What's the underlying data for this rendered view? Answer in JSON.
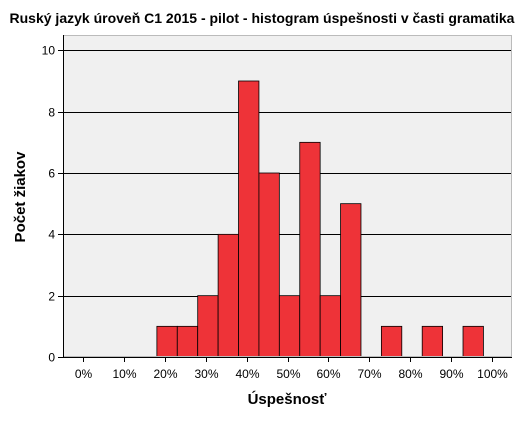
{
  "chart_data": {
    "type": "bar",
    "title": "Ruský jazyk úroveň C1 2015 - pilot - histogram úspešnosti v časti gramatika",
    "xlabel": "Úspešnosť",
    "ylabel": "Počet žiakov",
    "xlim": [
      -0.05,
      1.05
    ],
    "ylim": [
      0,
      10.5
    ],
    "x_ticks": [
      0,
      0.1,
      0.2,
      0.3,
      0.4,
      0.5,
      0.6,
      0.7,
      0.8,
      0.9,
      1.0
    ],
    "x_tick_labels": [
      "0%",
      "10%",
      "20%",
      "30%",
      "40%",
      "50%",
      "60%",
      "70%",
      "80%",
      "90%",
      "100%"
    ],
    "y_ticks": [
      0,
      2,
      4,
      6,
      8,
      10
    ],
    "y_tick_labels": [
      "0",
      "2",
      "4",
      "6",
      "8",
      "10"
    ],
    "bin_width": 0.05,
    "bins": [
      {
        "start": 0.18,
        "count": 1
      },
      {
        "start": 0.23,
        "count": 1
      },
      {
        "start": 0.28,
        "count": 2
      },
      {
        "start": 0.33,
        "count": 4
      },
      {
        "start": 0.38,
        "count": 9
      },
      {
        "start": 0.43,
        "count": 6
      },
      {
        "start": 0.48,
        "count": 2
      },
      {
        "start": 0.53,
        "count": 7
      },
      {
        "start": 0.58,
        "count": 2
      },
      {
        "start": 0.63,
        "count": 5
      },
      {
        "start": 0.73,
        "count": 1
      },
      {
        "start": 0.83,
        "count": 1
      },
      {
        "start": 0.93,
        "count": 1
      }
    ],
    "grid": "horizontal",
    "legend": "none",
    "colors": {
      "bar_fill": "#EE3338",
      "bar_stroke": "#000000",
      "plot_background": "#F0F0F0",
      "grid": "#000000"
    }
  }
}
